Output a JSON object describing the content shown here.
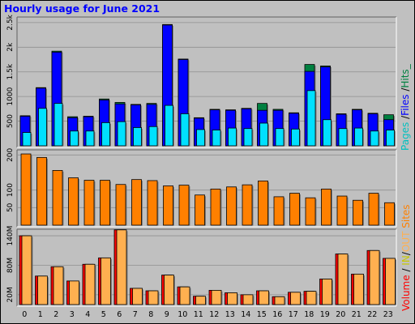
{
  "chart_data": {
    "type": "bar",
    "title": "Hourly usage for June 2021",
    "categories": [
      "0",
      "1",
      "2",
      "3",
      "4",
      "5",
      "6",
      "7",
      "8",
      "9",
      "10",
      "11",
      "12",
      "13",
      "14",
      "15",
      "16",
      "17",
      "18",
      "19",
      "20",
      "21",
      "22",
      "23"
    ],
    "panels": [
      {
        "name": "hits",
        "ylim": [
          0,
          2580
        ],
        "yticks": [
          {
            "value": 500,
            "label": "500"
          },
          {
            "value": 1000,
            "label": "1000"
          },
          {
            "value": 1500,
            "label": "1.5k"
          },
          {
            "value": 2000,
            "label": "2k"
          },
          {
            "value": 2500,
            "label": "2.5k"
          }
        ],
        "series": [
          {
            "name": "Hits",
            "color": "#008040",
            "values": [
              610,
              1180,
              1920,
              590,
              600,
              950,
              880,
              840,
              860,
              2460,
              1760,
              570,
              740,
              730,
              760,
              860,
              740,
              670,
              1650,
              1620,
              650,
              740,
              660,
              630
            ]
          },
          {
            "name": "Files",
            "color": "#0000ff",
            "values": [
              600,
              1170,
              1900,
              570,
              590,
              930,
              850,
              830,
              840,
              2450,
              1750,
              560,
              730,
              720,
              750,
              720,
              720,
              660,
              1510,
              1600,
              640,
              730,
              650,
              530
            ]
          },
          {
            "name": "Pages",
            "color": "#00e0ff",
            "values": [
              270,
              760,
              860,
              300,
              300,
              470,
              490,
              370,
              390,
              820,
              650,
              330,
              320,
              360,
              350,
              460,
              350,
              340,
              1120,
              530,
              350,
              360,
              300,
              320
            ]
          }
        ]
      },
      {
        "name": "sites",
        "ylim": [
          0,
          210
        ],
        "yticks": [
          {
            "value": 50,
            "label": "50"
          },
          {
            "value": 100,
            "label": "100"
          },
          {
            "value": 200,
            "label": "200"
          }
        ],
        "series": [
          {
            "name": "Sites",
            "color": "#ff8000",
            "values": [
              203,
              193,
              156,
              135,
              128,
              128,
              116,
              130,
              127,
              112,
              114,
              86,
              103,
              109,
              115,
              126,
              81,
              91,
              78,
              103,
              83,
              71,
              91,
              64
            ]
          }
        ]
      },
      {
        "name": "volume",
        "ylim": [
          0,
          150
        ],
        "yticks": [
          {
            "value": 20,
            "label": "20M"
          },
          {
            "value": 80,
            "label": "80M"
          },
          {
            "value": 140,
            "label": "140M"
          }
        ],
        "series": [
          {
            "name": "Volume",
            "color": "#ff0000",
            "values": [
              140,
              58,
              77,
              48,
              82,
              95,
              152,
              33,
              28,
              60,
              36,
              17,
              29,
              24,
              20,
              28,
              16,
              25,
              27,
              52,
              103,
              62,
              110,
              94
            ]
          },
          {
            "name": "Volume (overlay)",
            "color": "#ffb050",
            "values": [
              140,
              58,
              77,
              48,
              82,
              95,
              152,
              33,
              28,
              60,
              36,
              17,
              29,
              24,
              20,
              28,
              16,
              25,
              27,
              52,
              103,
              62,
              110,
              94
            ]
          }
        ]
      }
    ],
    "legend": [
      {
        "text": "Pages",
        "color": "#00c0c0"
      },
      {
        "text": " /",
        "color": "#000000"
      },
      {
        "text": "Files",
        "color": "#0000ff"
      },
      {
        "text": " /",
        "color": "#000000"
      },
      {
        "text": "Hits_",
        "color": "#008040"
      }
    ],
    "legend_bottom": [
      {
        "text": "Volume",
        "color": "#ff0000"
      },
      {
        "text": " / ",
        "color": "#000000"
      },
      {
        "text": "IN",
        "color": "#c8c800"
      },
      {
        "text": "/",
        "color": "#000000"
      },
      {
        "text": "OUT",
        "color": "#ffb050"
      },
      {
        "text": "  ",
        "color": "#000000"
      },
      {
        "text": "Sites",
        "color": "#ff8000"
      }
    ]
  }
}
